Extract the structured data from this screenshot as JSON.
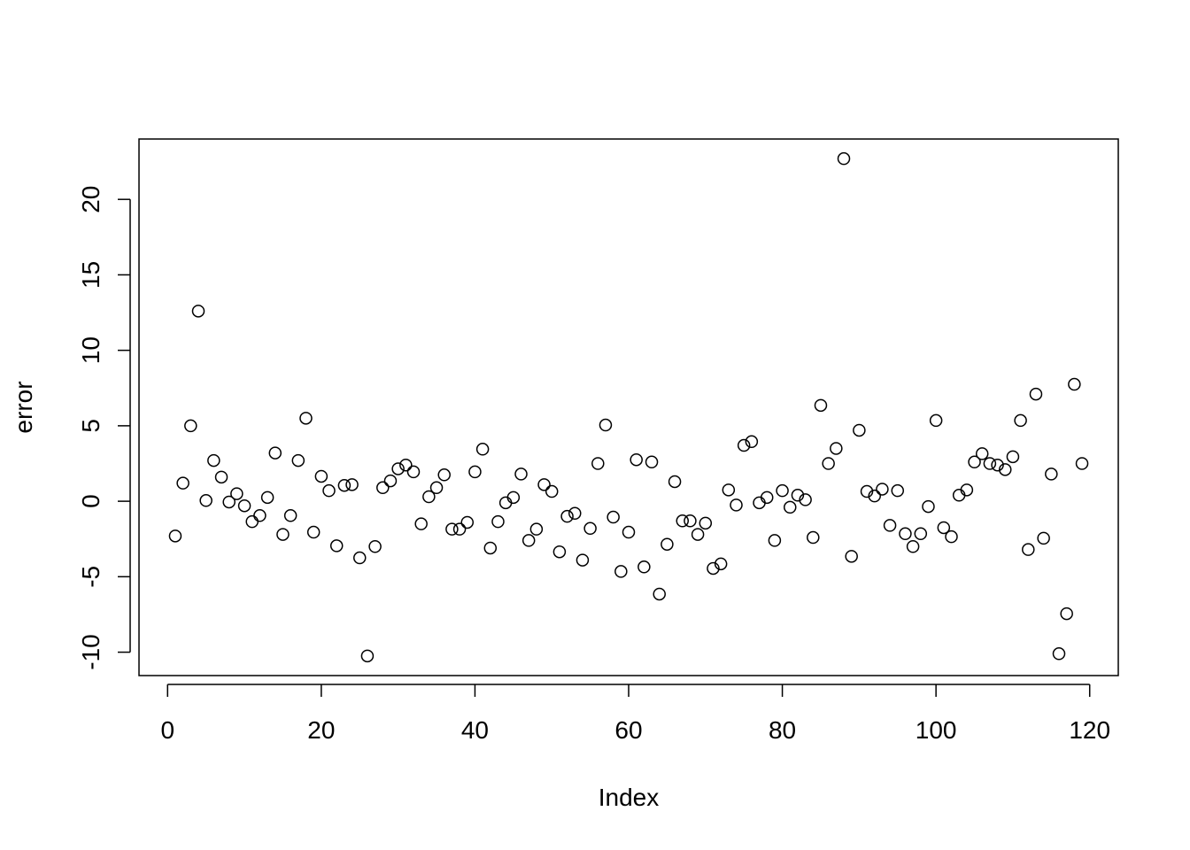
{
  "chart_data": {
    "type": "scatter",
    "xlabel": "Index",
    "ylabel": "error",
    "x": [
      1,
      2,
      3,
      4,
      5,
      6,
      7,
      8,
      9,
      10,
      11,
      12,
      13,
      14,
      15,
      16,
      17,
      18,
      19,
      20,
      21,
      22,
      23,
      24,
      25,
      26,
      27,
      28,
      29,
      30,
      31,
      32,
      33,
      34,
      35,
      36,
      37,
      38,
      39,
      40,
      41,
      42,
      43,
      44,
      45,
      46,
      47,
      48,
      49,
      50,
      51,
      52,
      53,
      54,
      55,
      56,
      57,
      58,
      59,
      60,
      61,
      62,
      63,
      64,
      65,
      66,
      67,
      68,
      69,
      70,
      71,
      72,
      73,
      74,
      75,
      76,
      77,
      78,
      79,
      80,
      81,
      82,
      83,
      84,
      85,
      86,
      87,
      88,
      89,
      90,
      91,
      92,
      93,
      94,
      95,
      96,
      97,
      98,
      99,
      100,
      101,
      102,
      103,
      104,
      105,
      106,
      107,
      108,
      109,
      110,
      111,
      112,
      113,
      114,
      115,
      116,
      117,
      118,
      119
    ],
    "values": [
      -2.3,
      1.2,
      5.0,
      12.6,
      0.05,
      2.7,
      1.6,
      -0.05,
      0.5,
      -0.3,
      -1.35,
      -0.95,
      0.25,
      3.2,
      -2.2,
      -0.95,
      2.7,
      5.5,
      -2.05,
      1.65,
      0.7,
      -2.95,
      1.05,
      1.1,
      -3.75,
      -10.25,
      -3.0,
      0.9,
      1.35,
      2.15,
      2.4,
      1.95,
      -1.5,
      0.3,
      0.9,
      1.75,
      -1.85,
      -1.85,
      -1.4,
      1.95,
      3.45,
      -3.1,
      -1.35,
      -0.1,
      0.25,
      1.8,
      -2.6,
      -1.85,
      1.1,
      0.65,
      -3.35,
      -1.0,
      -0.8,
      -3.9,
      -1.8,
      2.5,
      5.05,
      -1.05,
      -4.65,
      -2.05,
      2.75,
      -4.35,
      2.6,
      -6.15,
      -2.85,
      1.3,
      -1.3,
      -1.3,
      -2.2,
      -1.45,
      -4.45,
      -4.15,
      0.75,
      -0.25,
      3.7,
      3.95,
      -0.1,
      0.25,
      -2.6,
      0.7,
      -0.4,
      0.4,
      0.1,
      -2.4,
      6.35,
      2.5,
      3.5,
      22.7,
      -3.65,
      4.7,
      0.65,
      0.35,
      0.8,
      -1.6,
      0.7,
      -2.15,
      -3.0,
      -2.15,
      -0.35,
      5.35,
      -1.75,
      -2.35,
      0.4,
      0.75,
      2.6,
      3.15,
      2.5,
      2.4,
      2.1,
      2.95,
      5.35,
      -3.2,
      7.1,
      -2.45,
      1.8,
      -10.1,
      -7.45,
      7.75,
      2.5
    ],
    "color": "#000000",
    "xlim": [
      -3.72,
      123.72
    ],
    "xticks": [
      0,
      20,
      40,
      60,
      80,
      100,
      120
    ],
    "ylim": [
      -11.55,
      24.0
    ],
    "yticks": [
      -10,
      -5,
      0,
      5,
      10,
      15,
      20
    ]
  }
}
